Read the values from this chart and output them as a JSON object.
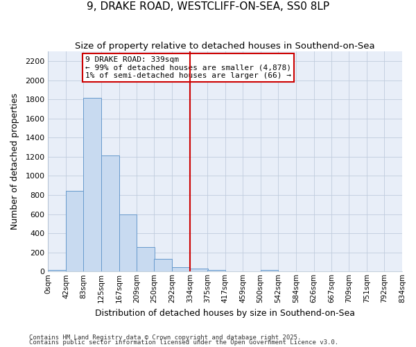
{
  "title": "9, DRAKE ROAD, WESTCLIFF-ON-SEA, SS0 8LP",
  "subtitle": "Size of property relative to detached houses in Southend-on-Sea",
  "xlabel": "Distribution of detached houses by size in Southend-on-Sea",
  "ylabel": "Number of detached properties",
  "bar_color": "#c8daf0",
  "bar_edge_color": "#6699cc",
  "background_color": "#e8eef8",
  "grid_color": "#c0ccdd",
  "bins": [
    "0sqm",
    "42sqm",
    "83sqm",
    "125sqm",
    "167sqm",
    "209sqm",
    "250sqm",
    "292sqm",
    "334sqm",
    "375sqm",
    "417sqm",
    "459sqm",
    "500sqm",
    "542sqm",
    "584sqm",
    "626sqm",
    "667sqm",
    "709sqm",
    "751sqm",
    "792sqm",
    "834sqm"
  ],
  "bar_heights": [
    20,
    845,
    1815,
    1210,
    600,
    255,
    130,
    42,
    28,
    20,
    0,
    0,
    15,
    0,
    0,
    0,
    0,
    0,
    0,
    0
  ],
  "bin_edges": [
    0,
    42,
    83,
    125,
    167,
    209,
    250,
    292,
    334,
    375,
    417,
    459,
    500,
    542,
    584,
    626,
    667,
    709,
    751,
    792,
    834
  ],
  "vline_x": 334,
  "vline_color": "#cc0000",
  "annotation_text": "9 DRAKE ROAD: 339sqm\n← 99% of detached houses are smaller (4,878)\n1% of semi-detached houses are larger (66) →",
  "annotation_box_color": "#cc0000",
  "ylim": [
    0,
    2300
  ],
  "yticks": [
    0,
    200,
    400,
    600,
    800,
    1000,
    1200,
    1400,
    1600,
    1800,
    2000,
    2200
  ],
  "footnote1": "Contains HM Land Registry data © Crown copyright and database right 2025.",
  "footnote2": "Contains public sector information licensed under the Open Government Licence v3.0."
}
